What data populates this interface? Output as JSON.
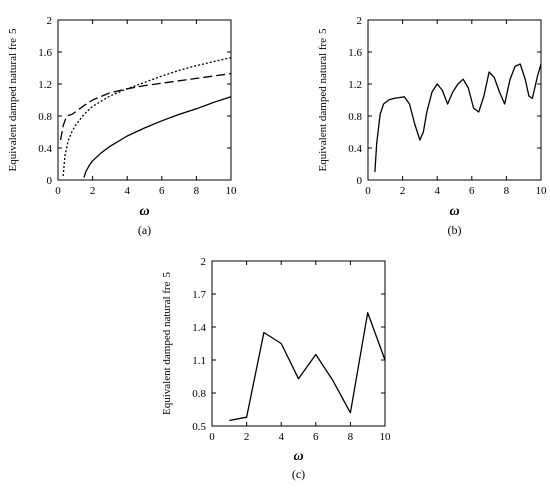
{
  "chart_data": [
    {
      "panel_label": "(a)",
      "type": "line",
      "xlabel": "ω",
      "ylabel": "Equivalent damped natural fre",
      "ylabel_suffix": "5",
      "xlim": [
        0,
        10
      ],
      "ylim": [
        0,
        2
      ],
      "xticks": [
        "0",
        "2",
        "4",
        "6",
        "8",
        "10"
      ],
      "yticks": [
        "0",
        "0.4",
        "0.8",
        "1.2",
        "1.6",
        "2"
      ],
      "series": [
        {
          "style": "solid",
          "x": [
            1.5,
            1.6,
            1.8,
            2,
            2.5,
            3,
            4,
            5,
            6,
            7,
            8,
            9,
            10
          ],
          "y": [
            0.03,
            0.1,
            0.18,
            0.24,
            0.34,
            0.42,
            0.55,
            0.65,
            0.74,
            0.82,
            0.89,
            0.97,
            1.04
          ]
        },
        {
          "style": "dashed",
          "x": [
            0.15,
            0.3,
            0.5,
            0.8,
            1,
            1.5,
            2,
            3,
            4,
            5,
            6,
            7,
            8,
            9,
            10
          ],
          "y": [
            0.5,
            0.68,
            0.8,
            0.82,
            0.85,
            0.93,
            1.0,
            1.09,
            1.14,
            1.18,
            1.21,
            1.24,
            1.27,
            1.3,
            1.33
          ]
        },
        {
          "style": "dotted",
          "x": [
            0.3,
            0.4,
            0.6,
            0.8,
            1,
            1.5,
            2,
            3,
            4,
            5,
            6,
            7,
            8,
            9,
            10
          ],
          "y": [
            0.05,
            0.3,
            0.5,
            0.6,
            0.68,
            0.82,
            0.92,
            1.05,
            1.14,
            1.22,
            1.3,
            1.37,
            1.43,
            1.48,
            1.53
          ]
        }
      ]
    },
    {
      "panel_label": "(b)",
      "type": "line",
      "xlabel": "ω",
      "ylabel": "Equivalent damped natural fre",
      "ylabel_suffix": "5",
      "xlim": [
        0,
        10
      ],
      "ylim": [
        0,
        2
      ],
      "xticks": [
        "0",
        "2",
        "4",
        "6",
        "8",
        "10"
      ],
      "yticks": [
        "0",
        "0.4",
        "0.8",
        "1.2",
        "1.6",
        "2"
      ],
      "series": [
        {
          "style": "solid",
          "x": [
            0.4,
            0.5,
            0.7,
            0.9,
            1.2,
            1.5,
            1.8,
            2.1,
            2.4,
            2.7,
            3.0,
            3.2,
            3.4,
            3.7,
            4.0,
            4.3,
            4.6,
            4.9,
            5.2,
            5.5,
            5.8,
            6.1,
            6.4,
            6.7,
            7.0,
            7.3,
            7.6,
            7.9,
            8.2,
            8.5,
            8.8,
            9.1,
            9.3,
            9.5,
            9.8,
            10
          ],
          "y": [
            0.1,
            0.45,
            0.82,
            0.95,
            1.0,
            1.02,
            1.03,
            1.04,
            0.95,
            0.7,
            0.5,
            0.6,
            0.85,
            1.1,
            1.2,
            1.12,
            0.95,
            1.1,
            1.2,
            1.26,
            1.15,
            0.9,
            0.85,
            1.05,
            1.35,
            1.28,
            1.1,
            0.95,
            1.25,
            1.42,
            1.45,
            1.25,
            1.05,
            1.02,
            1.3,
            1.45
          ]
        }
      ]
    },
    {
      "panel_label": "(c)",
      "type": "line",
      "xlabel": "ω",
      "ylabel": "Equivalent damped natural fre",
      "ylabel_suffix": "5",
      "xlim": [
        0,
        10
      ],
      "ylim": [
        0.5,
        2
      ],
      "xticks": [
        "0",
        "2",
        "4",
        "6",
        "8",
        "10"
      ],
      "yticks": [
        "0.5",
        "0.8",
        "1.1",
        "1.4",
        "1.7",
        "2"
      ],
      "series": [
        {
          "style": "solid",
          "x": [
            1,
            2,
            3,
            4,
            5,
            6,
            7,
            8,
            9,
            10
          ],
          "y": [
            0.55,
            0.58,
            1.35,
            1.25,
            0.93,
            1.15,
            0.91,
            0.62,
            1.53,
            1.1
          ]
        }
      ]
    }
  ]
}
